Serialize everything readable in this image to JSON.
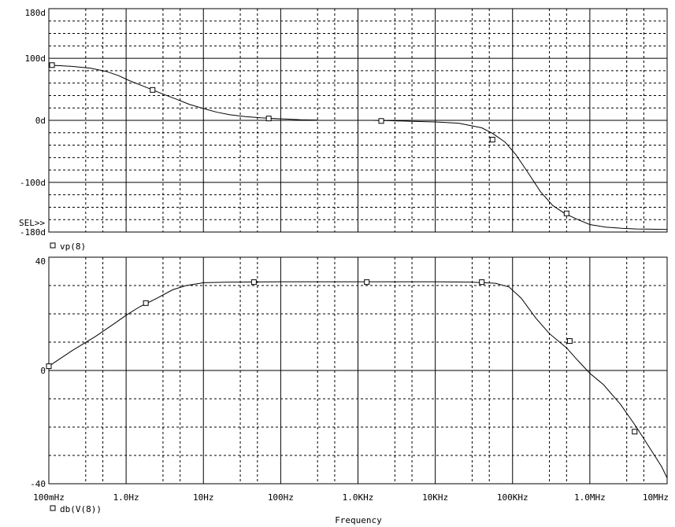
{
  "chart_data": [
    {
      "type": "line",
      "id": "phase",
      "title": "",
      "xlabel": "",
      "ylabel": "",
      "x_scale": "log",
      "ylim": [
        -180,
        180
      ],
      "y_ticks": [
        {
          "value": 180,
          "label": "180d"
        },
        {
          "value": 100,
          "label": "100d"
        },
        {
          "value": 0,
          "label": "0d"
        },
        {
          "value": -100,
          "label": "-100d"
        },
        {
          "value": -180,
          "label": "-180d"
        }
      ],
      "selector_label": "SEL>>",
      "series": [
        {
          "name": "vp(8)",
          "marker": "square",
          "segments": [
            [
              [
                0.1,
                89
              ],
              [
                0.2,
                87
              ],
              [
                0.35,
                84
              ],
              [
                0.55,
                79
              ],
              [
                0.8,
                72
              ],
              [
                1.1,
                64
              ],
              [
                1.6,
                56
              ],
              [
                2.2,
                49
              ],
              [
                3.2,
                41
              ],
              [
                4.5,
                34
              ],
              [
                6.5,
                26
              ],
              [
                10,
                19
              ],
              [
                15,
                13
              ],
              [
                22,
                9
              ],
              [
                35,
                6
              ],
              [
                55,
                4
              ],
              [
                80,
                3
              ],
              [
                120,
                2
              ],
              [
                180,
                1
              ],
              [
                300,
                0.5
              ]
            ],
            [
              [
                1500,
                0
              ],
              [
                2500,
                -0.5
              ],
              [
                5000,
                -1.5
              ],
              [
                10000,
                -2.5
              ],
              [
                20000,
                -4.5
              ],
              [
                40000,
                -12
              ],
              [
                55000,
                -21
              ],
              [
                80000,
                -35
              ],
              [
                110000,
                -55
              ],
              [
                160000,
                -85
              ],
              [
                230000,
                -115
              ],
              [
                330000,
                -137
              ],
              [
                470000,
                -150
              ],
              [
                700000,
                -160
              ],
              [
                1000000,
                -168
              ],
              [
                1600000,
                -172
              ],
              [
                2600000,
                -174
              ],
              [
                4000000,
                -175
              ],
              [
                6500000,
                -175.5
              ],
              [
                10000000,
                -176
              ]
            ]
          ],
          "markers": [
            [
              0.11,
              89
            ],
            [
              2.2,
              49
            ],
            [
              70,
              3
            ],
            [
              2000,
              -1
            ],
            [
              55000,
              -31
            ],
            [
              500000,
              -150
            ]
          ]
        }
      ]
    },
    {
      "type": "line",
      "id": "magnitude",
      "title": "",
      "xlabel": "Frequency",
      "ylabel": "",
      "x_scale": "log",
      "xlim": [
        0.1,
        10000000
      ],
      "x_ticks": [
        {
          "value": 0.1,
          "label": "100mHz"
        },
        {
          "value": 1,
          "label": "1.0Hz"
        },
        {
          "value": 10,
          "label": "10Hz"
        },
        {
          "value": 100,
          "label": "100Hz"
        },
        {
          "value": 1000,
          "label": "1.0KHz"
        },
        {
          "value": 10000,
          "label": "10KHz"
        },
        {
          "value": 100000,
          "label": "100KHz"
        },
        {
          "value": 1000000,
          "label": "1.0MHz"
        },
        {
          "value": 10000000,
          "label": "10MHz"
        }
      ],
      "ylim": [
        -40,
        40
      ],
      "y_ticks": [
        {
          "value": 40,
          "label": "40"
        },
        {
          "value": 0,
          "label": "0"
        },
        {
          "value": -40,
          "label": "-40"
        }
      ],
      "series": [
        {
          "name": "db(V(8))",
          "marker": "square",
          "points": [
            [
              0.1,
              1.5
            ],
            [
              0.2,
              7
            ],
            [
              0.4,
              12
            ],
            [
              0.7,
              16.5
            ],
            [
              1,
              19.5
            ],
            [
              1.5,
              22.5
            ],
            [
              2.5,
              25.5
            ],
            [
              4,
              28.5
            ],
            [
              6,
              30
            ],
            [
              10,
              31
            ],
            [
              20,
              31.2
            ],
            [
              100,
              31.3
            ],
            [
              1000,
              31.3
            ],
            [
              10000,
              31.3
            ],
            [
              30000,
              31.2
            ],
            [
              60000,
              30.8
            ],
            [
              90000,
              29.5
            ],
            [
              130000,
              25.5
            ],
            [
              200000,
              18.5
            ],
            [
              300000,
              13
            ],
            [
              500000,
              8
            ],
            [
              700000,
              3.5
            ],
            [
              1000000,
              -1
            ],
            [
              1500000,
              -5
            ],
            [
              2500000,
              -12
            ],
            [
              4000000,
              -20
            ],
            [
              6000000,
              -27.5
            ],
            [
              8500000,
              -34
            ],
            [
              10000000,
              -38
            ]
          ],
          "markers": [
            [
              0.1,
              1.5
            ],
            [
              1.8,
              23.8
            ],
            [
              45,
              31.2
            ],
            [
              1300,
              31.2
            ],
            [
              40000,
              31.2
            ],
            [
              550000,
              10.4
            ],
            [
              3800000,
              -21.6
            ]
          ]
        }
      ]
    }
  ]
}
